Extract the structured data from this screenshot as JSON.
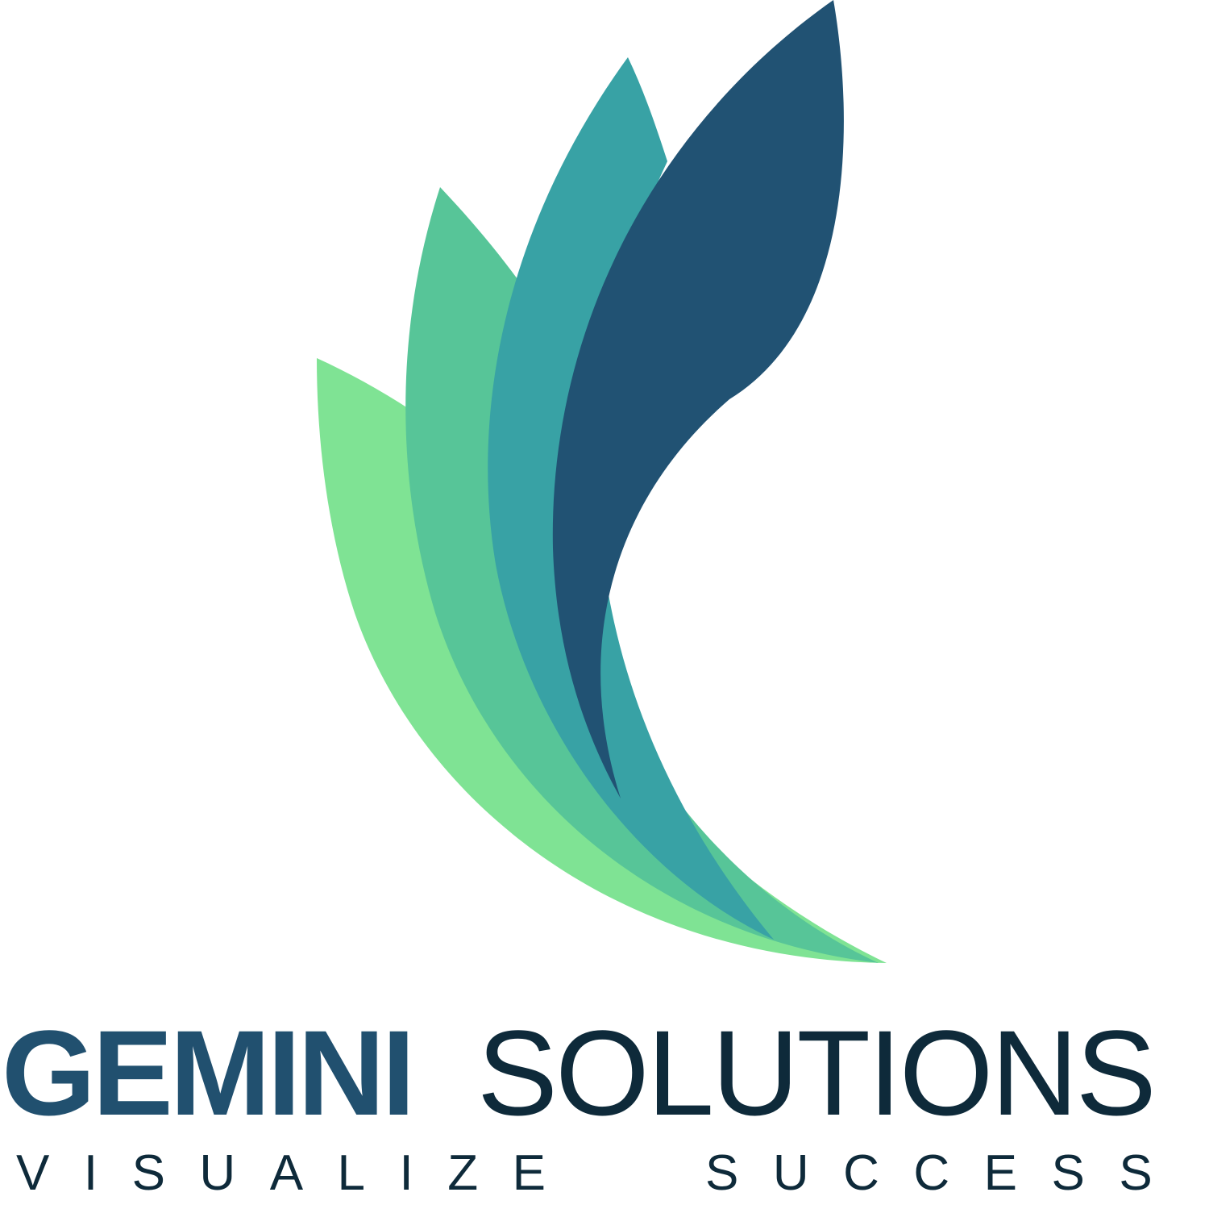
{
  "brand": {
    "name_part1": "GEMINI",
    "name_part2": "SOLUTIONS",
    "tagline_word1": "VISUALIZE",
    "tagline_word2": "SUCCESS",
    "colors": {
      "leaf_light_green": "#7fe394",
      "leaf_green": "#57c598",
      "leaf_teal": "#38a2a5",
      "leaf_navy": "#215273",
      "text_primary": "#21506f",
      "text_dark": "#0e2a3a",
      "background": "#ffffff"
    }
  }
}
